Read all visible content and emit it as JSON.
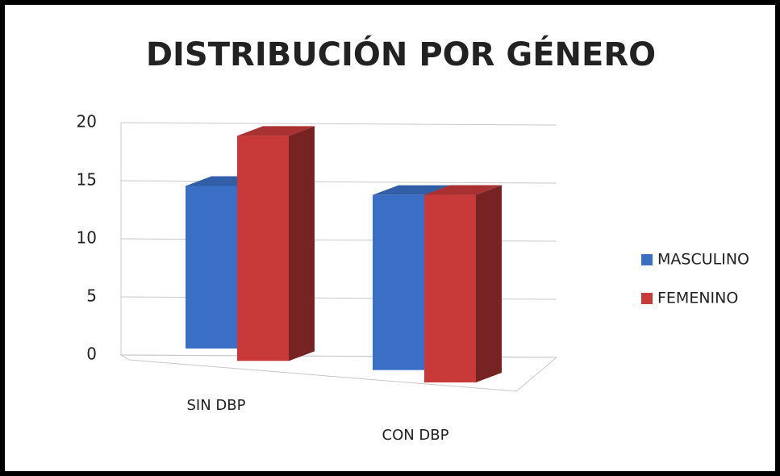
{
  "chart_data": {
    "type": "bar3d",
    "title": "DISTRIBUCIÓN POR GÉNERO",
    "categories": [
      "SIN DBP",
      "CON DBP"
    ],
    "series": [
      {
        "name": "MASCULINO",
        "color": "#3b6fc6",
        "values": [
          13,
          14
        ]
      },
      {
        "name": "FEMENINO",
        "color": "#c83a3a",
        "values": [
          18,
          15
        ]
      }
    ],
    "ylim": [
      0,
      20
    ],
    "yticks": [
      0,
      5,
      10,
      15,
      20
    ],
    "grid": true,
    "legend": "right"
  }
}
